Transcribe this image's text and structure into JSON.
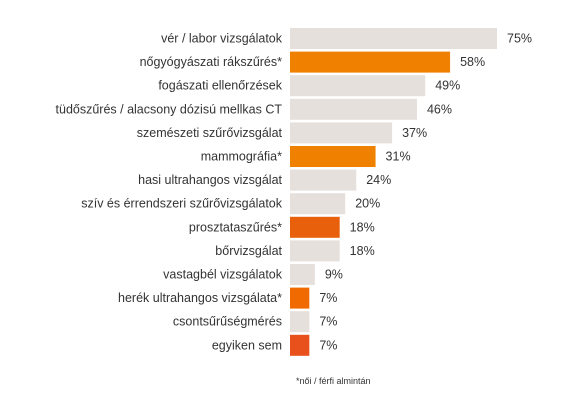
{
  "chart_data": {
    "type": "bar",
    "orientation": "horizontal",
    "categories": [
      "vér / labor vizsgálatok",
      "nőgyógyászati rákszűrés*",
      "fogászati ellenőrzések",
      "tüdőszűrés / alacsony dózisú mellkas CT",
      "szemészeti szűrővizsgálat",
      "mammográfia*",
      "hasi ultrahangos vizsgálat",
      "szív és érrendszeri szűrővizsgálatok",
      "prosztataszűrés*",
      "bőrvizsgálat",
      "vastagbél vizsgálatok",
      "herék ultrahangos vizsgálata*",
      "csontsűrűségmérés",
      "egyiken sem"
    ],
    "values": [
      75,
      58,
      49,
      46,
      37,
      31,
      24,
      20,
      18,
      18,
      9,
      7,
      7,
      7
    ],
    "value_labels": [
      "75%",
      "58%",
      "49%",
      "46%",
      "37%",
      "31%",
      "24%",
      "20%",
      "18%",
      "18%",
      "9%",
      "7%",
      "7%",
      "7%"
    ],
    "bar_colors": [
      "#e6e0dc",
      "#f08000",
      "#e6e0dc",
      "#e6e0dc",
      "#e6e0dc",
      "#f08000",
      "#e6e0dc",
      "#e6e0dc",
      "#e8600c",
      "#e6e0dc",
      "#e6e0dc",
      "#f06a00",
      "#e6e0dc",
      "#e8501c"
    ],
    "xlim": [
      0,
      75
    ],
    "grid": false,
    "legend": "none"
  },
  "footnote": "*női / férfi almintán"
}
